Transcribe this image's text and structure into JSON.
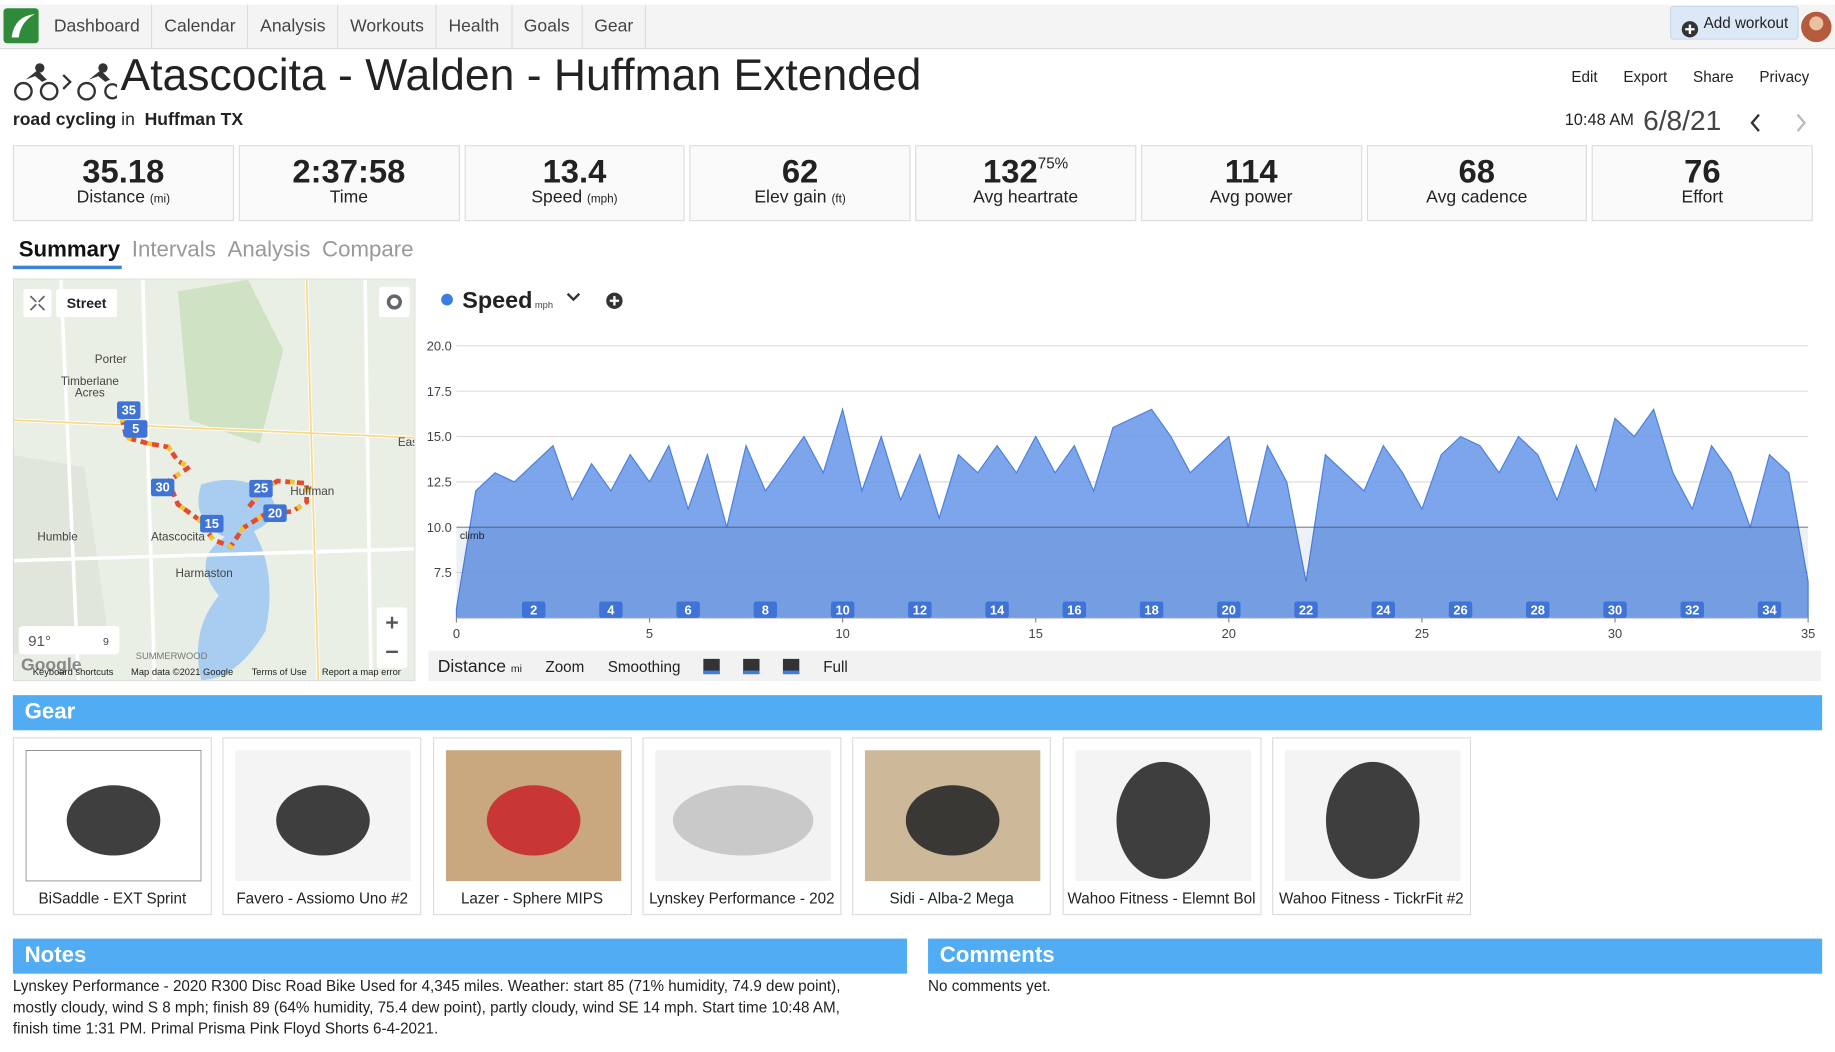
{
  "nav": {
    "items": [
      "Dashboard",
      "Calendar",
      "Analysis",
      "Workouts",
      "Health",
      "Goals",
      "Gear"
    ],
    "add_workout": "Add workout"
  },
  "header": {
    "title": "Atascocita - Walden - Huffman Extended",
    "sport": "road cycling",
    "in": "in",
    "location": "Huffman TX",
    "actions": [
      "Edit",
      "Export",
      "Share",
      "Privacy"
    ],
    "time": "10:48 AM",
    "date": "6/8/21"
  },
  "stats": [
    {
      "value": "35.18",
      "label": "Distance",
      "unit": "(mi)"
    },
    {
      "value": "2:37:58",
      "label": "Time"
    },
    {
      "value": "13.4",
      "label": "Speed",
      "unit": "(mph)"
    },
    {
      "value": "62",
      "label": "Elev gain",
      "unit": "(ft)"
    },
    {
      "value": "132",
      "sup": "75%",
      "label": "Avg heartrate"
    },
    {
      "value": "114",
      "label": "Avg power"
    },
    {
      "value": "68",
      "label": "Avg cadence"
    },
    {
      "value": "76",
      "label": "Effort"
    }
  ],
  "tabs": [
    "Summary",
    "Intervals",
    "Analysis",
    "Compare"
  ],
  "map": {
    "layer": "Street",
    "labels": [
      "Porter",
      "Timberlane",
      "Acres",
      "Humble",
      "Atascocita",
      "Harmaston",
      "Huffman",
      "Eas",
      "SUMMERWOOD"
    ],
    "markers": [
      "35",
      "5",
      "30",
      "25",
      "20",
      "15"
    ],
    "weather": "91°",
    "wind": "9",
    "logo": "Google",
    "footer": [
      "Keyboard shortcuts",
      "Map data ©2021 Google",
      "Terms of Use",
      "Report a map error"
    ]
  },
  "chart_data": {
    "type": "area",
    "title": "Speed",
    "unit": "mph",
    "annotation": "climb",
    "x": [
      0,
      0.5,
      1,
      1.5,
      2,
      2.5,
      3,
      3.5,
      4,
      4.5,
      5,
      5.5,
      6,
      6.5,
      7,
      7.5,
      8,
      8.5,
      9,
      9.5,
      10,
      10.5,
      11,
      11.5,
      12,
      12.5,
      13,
      13.5,
      14,
      14.5,
      15,
      15.5,
      16,
      16.5,
      17,
      17.5,
      18,
      18.5,
      19,
      19.5,
      20,
      20.5,
      21,
      21.5,
      22,
      22.5,
      23,
      23.5,
      24,
      24.5,
      25,
      25.5,
      26,
      26.5,
      27,
      27.5,
      28,
      28.5,
      29,
      29.5,
      30,
      30.5,
      31,
      31.5,
      32,
      32.5,
      33,
      33.5,
      34,
      34.5,
      35
    ],
    "series": [
      {
        "name": "Speed",
        "color": "#6e9be9",
        "values": [
          5.5,
          12,
          13,
          12.5,
          13.5,
          14.5,
          11.5,
          13.5,
          12,
          14,
          12.5,
          14.5,
          11,
          14,
          10,
          14.5,
          12,
          13.5,
          15,
          13,
          16.5,
          12,
          15,
          11.5,
          14,
          10.5,
          14,
          13,
          14.5,
          13,
          15,
          13,
          14.5,
          12,
          15.5,
          16,
          16.5,
          15,
          13,
          14,
          15,
          10,
          14.5,
          12.5,
          7,
          14,
          13,
          12,
          14.5,
          13,
          11,
          14,
          15,
          14.5,
          13,
          15,
          14,
          11.5,
          14.5,
          12,
          16,
          15,
          16.5,
          13,
          11,
          14.5,
          13,
          10,
          14,
          13,
          7
        ]
      }
    ],
    "xlim": [
      0,
      35
    ],
    "xticks": [
      0,
      5,
      10,
      15,
      20,
      25,
      30,
      35
    ],
    "ylim": [
      5,
      21
    ],
    "yticks": [
      {
        "value": 20,
        "label": "20.0"
      },
      17.5,
      {
        "value": 15,
        "label": "15.0"
      },
      12.5,
      {
        "value": 10,
        "label": "10.0"
      },
      7.5
    ],
    "markers": [
      2,
      4,
      6,
      8,
      10,
      12,
      14,
      16,
      18,
      20,
      22,
      24,
      26,
      28,
      30,
      32,
      34
    ],
    "grid": true
  },
  "chart_controls": {
    "x_axis": "Distance",
    "x_unit": "mi",
    "buttons": [
      "Zoom",
      "Smoothing",
      "Full"
    ]
  },
  "gear": {
    "title": "Gear",
    "items": [
      "BiSaddle - EXT Sprint",
      "Favero - Assiomo Uno #2",
      "Lazer - Sphere MIPS",
      "Lynskey Performance - 202",
      "Sidi - Alba-2 Mega",
      "Wahoo Fitness - Elemnt Bol",
      "Wahoo Fitness - TickrFit #2"
    ]
  },
  "notes": {
    "title": "Notes",
    "text": "Lynskey Performance - 2020 R300 Disc Road Bike Used for 4,345 miles. Weather: start 85 (71% humidity, 74.9 dew point), mostly cloudy, wind S 8 mph; finish 89 (64% humidity, 75.4 dew point), partly cloudy, wind SE 14 mph. Start time 10:48 AM, finish time 1:31 PM. Primal Prisma Pink Floyd Shorts 6-4-2021."
  },
  "comments": {
    "title": "Comments",
    "text": "No comments yet."
  }
}
